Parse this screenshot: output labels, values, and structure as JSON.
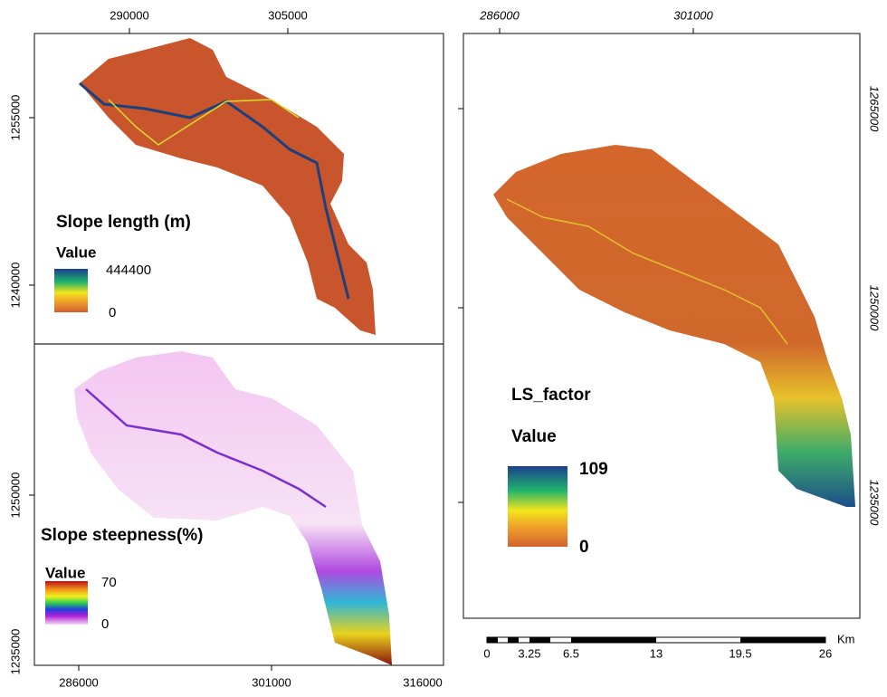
{
  "panels": [
    {
      "title": "Slope length (m)",
      "legend_title": "Value",
      "legend_max": 444400,
      "legend_min": 0,
      "x_ticks": [
        290000,
        305000
      ],
      "y_ticks": [
        1255000,
        1240000
      ]
    },
    {
      "title": "Slope steepness(%)",
      "legend_title": "Value",
      "legend_max": 70,
      "legend_min": 0,
      "x_ticks": [
        286000,
        301000,
        316000
      ],
      "y_ticks": [
        1250000,
        1235000
      ]
    },
    {
      "title": "LS_factor",
      "legend_title": "Value",
      "legend_max": 109,
      "legend_min": 0,
      "x_ticks": [
        286000,
        301000
      ],
      "y_ticks": [
        1265000,
        1250000,
        1235000
      ]
    }
  ],
  "scale_bar": {
    "unit": "Km",
    "labels": [
      0,
      3.25,
      6.5,
      13,
      19.5,
      26
    ]
  }
}
